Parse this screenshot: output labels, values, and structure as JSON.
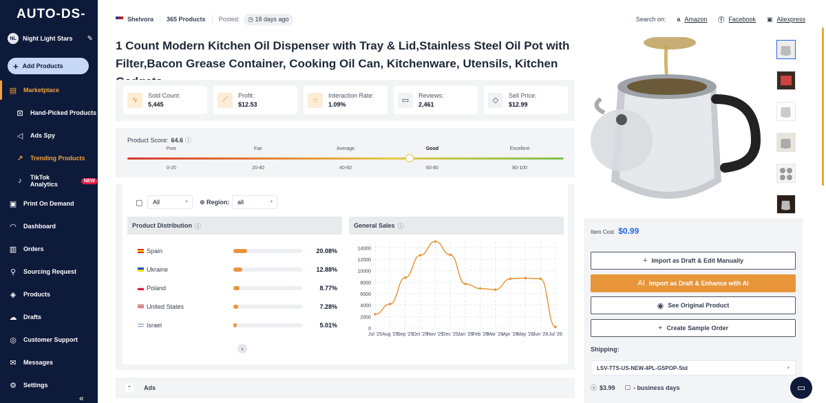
{
  "sidebar": {
    "logo_left": "AUTO",
    "logo_dash": "-",
    "logo_right": "DS",
    "logo_tail": "-",
    "store_initials": "NL",
    "store_name": "Night Light Stars",
    "add_products": "Add Products",
    "items": [
      {
        "label": "Marketplace",
        "icon": "store-icon"
      },
      {
        "label": "Hand-Picked Products",
        "icon": "handpicked-icon"
      },
      {
        "label": "Ads Spy",
        "icon": "megaphone-icon"
      },
      {
        "label": "Trending Products",
        "icon": "trending-icon"
      },
      {
        "label": "TikTok Analytics",
        "icon": "tiktok-icon",
        "badge": "NEW"
      },
      {
        "label": "Print On Demand",
        "icon": "shirt-icon"
      },
      {
        "label": "Dashboard",
        "icon": "gauge-icon"
      },
      {
        "label": "Orders",
        "icon": "clipboard-icon"
      },
      {
        "label": "Sourcing Request",
        "icon": "sourcing-icon"
      },
      {
        "label": "Products",
        "icon": "box-icon"
      },
      {
        "label": "Drafts",
        "icon": "cloud-icon"
      },
      {
        "label": "Customer Support",
        "icon": "support-icon"
      },
      {
        "label": "Messages",
        "icon": "mail-icon"
      },
      {
        "label": "Settings",
        "icon": "gear-icon"
      }
    ],
    "collapse": "«"
  },
  "header": {
    "shop": "Shelvora",
    "products": "365 Products",
    "posted_label": "Posted:",
    "posted_value": "18 days ago",
    "search_on": "Search on:",
    "links": [
      "Amazon",
      "Facebook",
      "Aliexpress"
    ]
  },
  "title": "1 Count Modern Kitchen Oil Dispenser with Tray & Lid,Stainless Steel Oil Pot with Filter,Bacon Grease Container, Cooking Oil Can, Kitchenware, Utensils, Kitchen Gadgets",
  "stats": [
    {
      "label": "Sold Count:",
      "value": "5,445",
      "icon": "bolt-icon"
    },
    {
      "label": "Profit:",
      "value": "$12.53",
      "icon": "chart-icon"
    },
    {
      "label": "Interaction Rate:",
      "value": "1.09%",
      "icon": "thumb-icon"
    },
    {
      "label": "Reviews:",
      "value": "2,461",
      "icon": "chat-icon"
    },
    {
      "label": "Sell Price:",
      "value": "$12.99",
      "icon": "tag-icon"
    }
  ],
  "score": {
    "label": "Product Score:",
    "value": "64.6",
    "level": 0.646,
    "tiers": [
      {
        "name": "Poor",
        "range": "0-20"
      },
      {
        "name": "Fair",
        "range": "20-40"
      },
      {
        "name": "Average",
        "range": "40-60"
      },
      {
        "name": "Good",
        "range": "60-80"
      },
      {
        "name": "Excellent",
        "range": "80-100"
      }
    ],
    "active_tier": 3
  },
  "filters": {
    "period": "All",
    "region_label": "Region:",
    "region": "all"
  },
  "distribution": {
    "title": "Product Distribution",
    "rows": [
      {
        "country": "Spain",
        "pct": "20.08%",
        "share": 0.2008
      },
      {
        "country": "Ukraine",
        "pct": "12.88%",
        "share": 0.1288
      },
      {
        "country": "Poland",
        "pct": "8.77%",
        "share": 0.0877
      },
      {
        "country": "United States",
        "pct": "7.28%",
        "share": 0.0728
      },
      {
        "country": "Israel",
        "pct": "5.01%",
        "share": 0.0501
      }
    ]
  },
  "chart_data": {
    "type": "line",
    "title": "General Sales",
    "categories": [
      "Jul '25",
      "Aug '25",
      "Sep '25",
      "Oct '25",
      "Nov '25",
      "Dec '25",
      "Jan '26",
      "Feb '26",
      "Mar '26",
      "Apr '26",
      "May '26",
      "Jun '26",
      "Jul '26"
    ],
    "values": [
      2400,
      4200,
      8800,
      12700,
      15100,
      12800,
      7700,
      6900,
      6700,
      8600,
      8700,
      8600,
      200
    ],
    "ylim": [
      0,
      15000
    ],
    "yticks": [
      0,
      2000,
      4000,
      6000,
      8000,
      10000,
      12000,
      14000
    ],
    "grid": true,
    "color": "#e8953a"
  },
  "ads_label": "Ads",
  "buy": {
    "item_cost_label": "Item Cost",
    "item_cost": "$0.99",
    "buttons": [
      {
        "label": "Import as Draft & Edit Manually",
        "icon": "+"
      },
      {
        "label": "Import as Draft & Enhance with AI",
        "icon": "AI"
      },
      {
        "label": "See Original Product",
        "icon": "◉"
      },
      {
        "label": "Create Sample Order",
        "icon": "+"
      }
    ],
    "shipping_label": "Shipping:",
    "shipping_method": "LSV-TTS-US-NEW-4PL-GSPOP-Std",
    "shipping_price": "$3.99",
    "shipping_days": "- business days"
  }
}
